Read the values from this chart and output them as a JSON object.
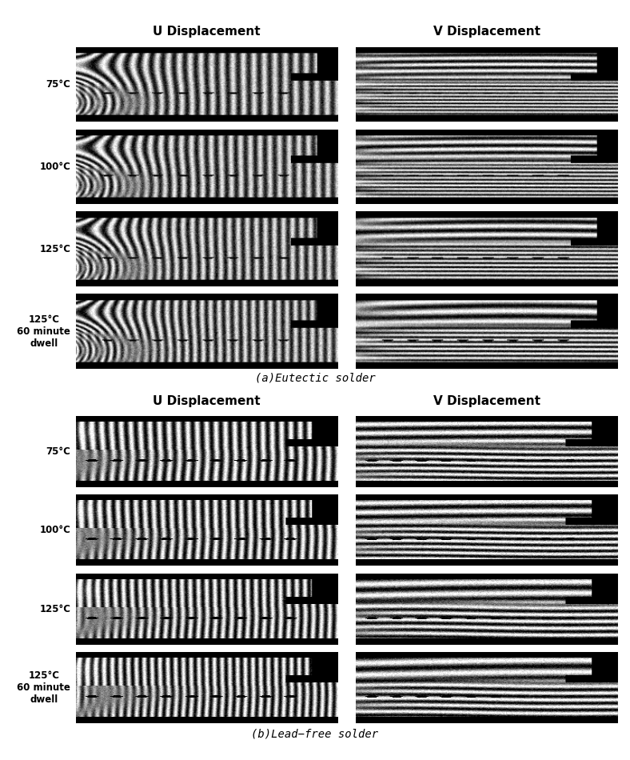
{
  "fig_width": 7.88,
  "fig_height": 9.5,
  "bg_color": "#ffffff",
  "col_headers": [
    "U Displacement",
    "V Displacement"
  ],
  "row_labels_a": [
    "75°C",
    "100°C",
    "125°C",
    "125°C\n60 minute\ndwell"
  ],
  "row_labels_b": [
    "75°C",
    "100°C",
    "125°C",
    "125°C\n60 minute\ndwell"
  ],
  "caption_a": "(a)Eutectic solder",
  "caption_b": "(b)Lead−free solder",
  "header_fontsize": 11,
  "label_fontsize": 8.5,
  "caption_fontsize": 10,
  "panel_bg": "#000000"
}
